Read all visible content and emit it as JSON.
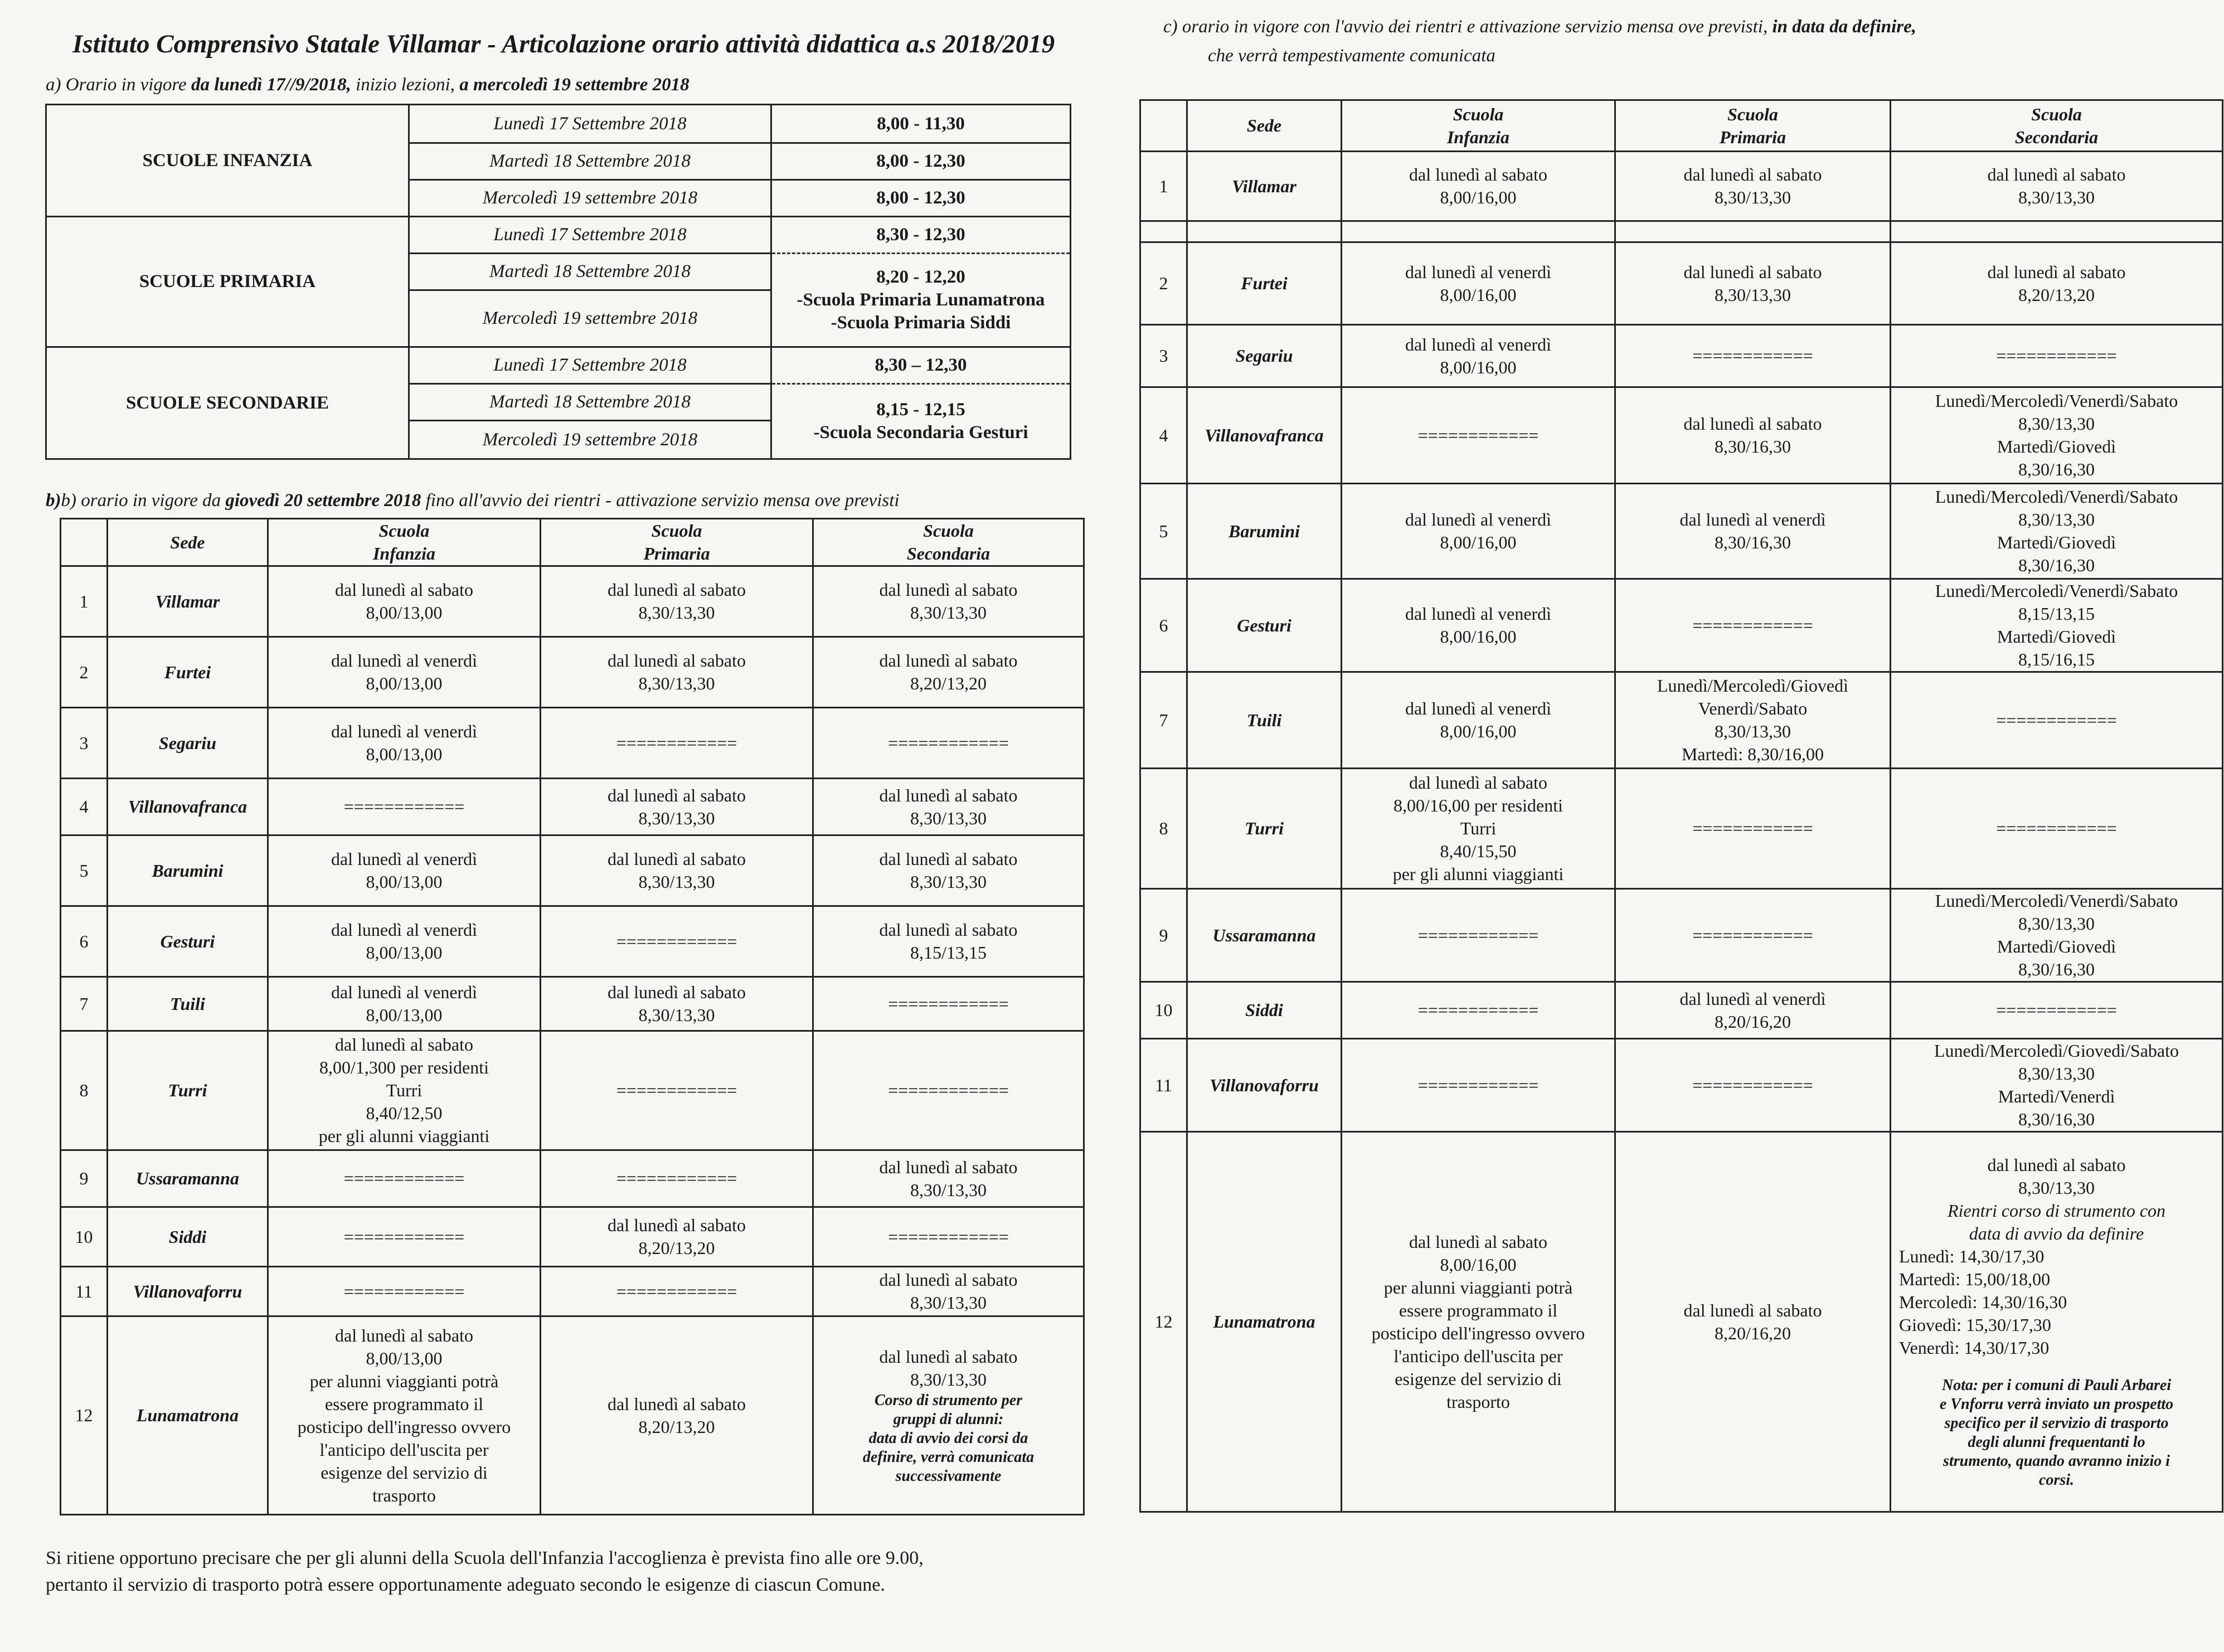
{
  "title": {
    "bold": "Istituto Comprensivo Statale Villamar",
    "sep": " - ",
    "rest": "Articolazione orario attività didattica a.s 2018/2019"
  },
  "section_a": {
    "heading_prefix": "a)  Orario in vigore ",
    "heading_bold": "da lunedì 17//9/2018,",
    "heading_mid": " inizio lezioni, ",
    "heading_bold2": "a mercoledì 19 settembre 2018",
    "groups": [
      {
        "name": "SCUOLE INFANZIA",
        "days": [
          "Lunedì 17 Settembre  2018",
          "Martedì 18 Settembre  2018",
          "Mercoledì 19 settembre 2018"
        ],
        "times": [
          "8,00 - 11,30",
          "8,00 - 12,30",
          "8,00 - 12,30"
        ]
      },
      {
        "name": "SCUOLE PRIMARIA",
        "days": [
          "Lunedì 17 Settembre  2018",
          "Martedì 18 Settembre  2018",
          "Mercoledì 19 settembre 2018"
        ],
        "times": [
          "8,30 - 12,30",
          "8,20 - 12,20\n-Scuola Primaria Lunamatrona\n-Scuola Primaria Siddi"
        ]
      },
      {
        "name": "SCUOLE SECONDARIE",
        "days": [
          "Lunedì 17 Settembre  2018",
          "Martedì 18 Settembre  2018",
          "Mercoledì 19 settembre 2018"
        ],
        "times": [
          "8,30 – 12,30",
          "8,15 - 12,15\n-Scuola Secondaria Gesturi"
        ]
      }
    ]
  },
  "section_b": {
    "heading_prefix": "b)  orario in vigore da ",
    "heading_bold": "giovedì 20 settembre 2018",
    "heading_rest": " fino all'avvio dei rientri - attivazione servizio mensa ove previsti",
    "headers": [
      "",
      "Sede",
      "Scuola\nInfanzia",
      "Scuola\nPrimaria",
      "Scuola\nSecondaria"
    ],
    "rows": [
      {
        "cells": [
          "1",
          "Villamar",
          "dal lunedì al sabato\n8,00/13,00",
          "dal lunedì al sabato\n8,30/13,30",
          "dal lunedì al sabato\n8,30/13,30"
        ]
      },
      {
        "cells": [
          "2",
          "Furtei",
          "dal lunedì al venerdì\n8,00/13,00",
          "dal lunedì al sabato\n8,30/13,30",
          "dal lunedì al sabato\n8,20/13,20"
        ]
      },
      {
        "cells": [
          "3",
          "Segariu",
          "dal lunedì al venerdì\n8,00/13,00",
          "============",
          "============"
        ]
      },
      {
        "cells": [
          "4",
          "Villanovafranca",
          "============",
          "dal lunedì al sabato\n8,30/13,30",
          "dal lunedì al sabato\n8,30/13,30"
        ]
      },
      {
        "cells": [
          "5",
          "Barumini",
          "dal lunedì al venerdì\n8,00/13,00",
          "dal lunedì al sabato\n8,30/13,30",
          "dal lunedì al sabato\n8,30/13,30"
        ]
      },
      {
        "cells": [
          "6",
          "Gesturi",
          "dal lunedì al venerdì\n8,00/13,00",
          "============",
          "dal lunedì al sabato\n8,15/13,15"
        ]
      },
      {
        "cells": [
          "7",
          "Tuili",
          "dal lunedì al venerdì\n8,00/13,00",
          "dal lunedì al sabato\n8,30/13,30",
          "============"
        ]
      },
      {
        "cells": [
          "8",
          "Turri",
          "dal lunedì al sabato\n8,00/1,300  per  residenti\nTurri\n8,40/12,50\nper gli alunni viaggianti",
          "============",
          "============"
        ]
      },
      {
        "cells": [
          "9",
          "Ussaramanna",
          "============",
          "============",
          "dal lunedì al sabato\n8,30/13,30"
        ]
      },
      {
        "cells": [
          "10",
          "Siddi",
          "============",
          "dal lunedì al sabato\n8,20/13,20",
          "============"
        ]
      },
      {
        "cells": [
          "11",
          "Villanovaforru",
          "============",
          "============",
          "dal lunedì al sabato\n8,30/13,30"
        ]
      },
      {
        "cells": [
          "12",
          "Lunamatrona",
          "dal lunedì al sabato\n8,00/13,00\nper alunni viaggianti potrà\nessere programmato il\nposticipo dell'ingresso ovvero\nl'anticipo dell'uscita per\nesigenze del servizio di\ntrasporto",
          "dal lunedì al sabato\n8,20/13,20",
          [
            {
              "t": "dal lunedì al sabato\n8,30/13,30",
              "style": "normal"
            },
            {
              "t": "Corso di strumento per\ngruppi di alunni:\ndata di avvio dei corsi da\ndefinire, verrà comunicata\nsuccessivamente",
              "style": "bold-italic"
            }
          ]
        ]
      }
    ]
  },
  "section_c": {
    "heading_prefix": "c)  orario in vigore con  l'avvio dei rientri e attivazione servizio mensa ove previsti, ",
    "heading_bold": "in data da definire,",
    "heading_line2": "che verrà tempestivamente comunicata",
    "headers": [
      "",
      "Sede",
      "Scuola\nInfanzia",
      "Scuola\nPrimaria",
      "Scuola\nSecondaria"
    ],
    "rows": [
      {
        "cells": [
          "1",
          "Villamar",
          "dal lunedì al sabato\n8,00/16,00",
          "dal lunedì al sabato\n8,30/13,30",
          "dal lunedì al sabato\n8,30/13,30"
        ]
      },
      {
        "cells": [
          "",
          "",
          "",
          "",
          ""
        ]
      },
      {
        "cells": [
          "2",
          "Furtei",
          "dal lunedì al venerdì\n8,00/16,00",
          "dal lunedì al sabato\n8,30/13,30",
          "dal lunedì al sabato\n8,20/13,20"
        ]
      },
      {
        "cells": [
          "3",
          "Segariu",
          "dal lunedì al venerdì\n8,00/16,00",
          "============",
          "============"
        ]
      },
      {
        "cells": [
          "4",
          "Villanovafranca",
          "============",
          "dal lunedì al sabato\n8,30/16,30",
          "Lunedì/Mercoledì/Venerdì/Sabato\n8,30/13,30\nMartedì/Giovedì\n8,30/16,30"
        ]
      },
      {
        "cells": [
          "5",
          "Barumini",
          "dal lunedì al venerdì\n8,00/16,00",
          "dal lunedì al venerdì\n8,30/16,30",
          "Lunedì/Mercoledì/Venerdì/Sabato\n8,30/13,30\nMartedì/Giovedì\n8,30/16,30"
        ]
      },
      {
        "cells": [
          "6",
          "Gesturi",
          "dal lunedì al venerdì\n8,00/16,00",
          "============",
          "Lunedì/Mercoledì/Venerdì/Sabato\n8,15/13,15\nMartedì/Giovedì\n8,15/16,15"
        ]
      },
      {
        "cells": [
          "7",
          "Tuili",
          "dal lunedì al venerdì\n8,00/16,00",
          "Lunedì/Mercoledì/Giovedì\nVenerdì/Sabato\n8,30/13,30\nMartedì: 8,30/16,00",
          "============"
        ]
      },
      {
        "cells": [
          "8",
          "Turri",
          "dal lunedì al sabato\n8,00/16,00  per  residenti\nTurri\n8,40/15,50\nper gli alunni viaggianti",
          "============",
          "============"
        ]
      },
      {
        "cells": [
          "9",
          "Ussaramanna",
          "============",
          "============",
          "Lunedì/Mercoledì/Venerdì/Sabato\n8,30/13,30\nMartedì/Giovedì\n8,30/16,30"
        ]
      },
      {
        "cells": [
          "10",
          "Siddi",
          "============",
          "dal lunedì al venerdì\n8,20/16,20",
          "============"
        ]
      },
      {
        "cells": [
          "11",
          "Villanovaforru",
          "============",
          "============",
          "Lunedì/Mercoledì/Giovedì/Sabato\n8,30/13,30\nMartedì/Venerdì\n8,30/16,30"
        ]
      },
      {
        "cells": [
          "12",
          "Lunamatrona",
          "dal lunedì al sabato\n8,00/16,00\nper alunni viaggianti potrà\nessere programmato il\nposticipo dell'ingresso ovvero\nl'anticipo dell'uscita per\nesigenze del servizio di\ntrasporto",
          "dal lunedì al sabato\n8,20/16,20",
          [
            {
              "t": "dal lunedì al sabato\n8,30/13,30",
              "style": "normal"
            },
            {
              "t": "Rientri corso di strumento  con\ndata di avvio da definire",
              "style": "italic"
            },
            {
              "t": "Lunedì: 14,30/17,30\nMartedì: 15,00/18,00\nMercoledì: 14,30/16,30\nGiovedì: 15,30/17,30\nVenerdì: 14,30/17,30",
              "style": "left"
            },
            {
              "t": "Nota: per i comuni  di Pauli Arbarei\ne Vnforru verrà inviato un prospetto\nspecifico per il servizio di trasporto\ndegli alunni frequentanti  lo\nstrumento, quando avranno inizio i\ncorsi.",
              "style": "bold-italic"
            }
          ]
        ]
      }
    ]
  },
  "footer": "Si ritiene opportuno precisare che per gli alunni della Scuola dell'Infanzia l'accoglienza è prevista fino alle ore 9.00,\npertanto il servizio di trasporto potrà essere opportunamente adeguato secondo le esigenze di ciascun Comune."
}
